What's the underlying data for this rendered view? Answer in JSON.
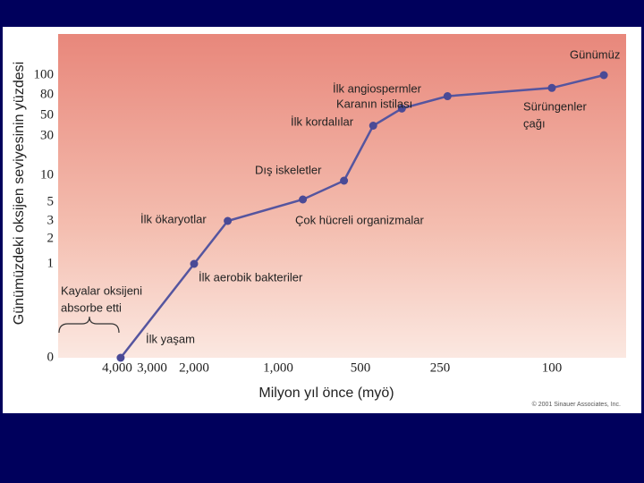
{
  "chart_data": {
    "type": "line",
    "x_label": "Milyon yıl önce (myö)",
    "y_label": "Günümüzdeki oksijen seviyesinin yüzdesi",
    "x": [
      3900,
      2000,
      1600,
      850,
      600,
      460,
      370,
      240,
      100,
      30
    ],
    "series": [
      {
        "color": "#55559f",
        "values": [
          0,
          1,
          3,
          5.5,
          9,
          40,
          60,
          78,
          87,
          100
        ]
      }
    ],
    "xlim": [
      5700,
      0
    ],
    "xticks": [
      {
        "value": 4000,
        "label": "4,000"
      },
      {
        "value": 3000,
        "label": "3,000"
      },
      {
        "value": 2000,
        "label": "2,000"
      },
      {
        "value": 1000,
        "label": "1,000"
      },
      500,
      250,
      100
    ],
    "ylim": [
      0,
      140
    ],
    "yticks": [
      0,
      1,
      2,
      3,
      5,
      10,
      30,
      50,
      80,
      100
    ],
    "annotations": [
      "Günümüz",
      "İlk angiospermler",
      "Karanın istilası",
      "İlk kordalılar",
      "Sürüngenler",
      "çağı",
      "Dış iskeletler",
      "İlk ökaryotlar",
      "Çok hücreli organizmalar",
      "İlk aerobik bakteriler",
      "İlk yaşam",
      "Kayalar oksijeni",
      "absorbe etti"
    ],
    "credit": "© 2001 Sinauer Associates, Inc."
  }
}
